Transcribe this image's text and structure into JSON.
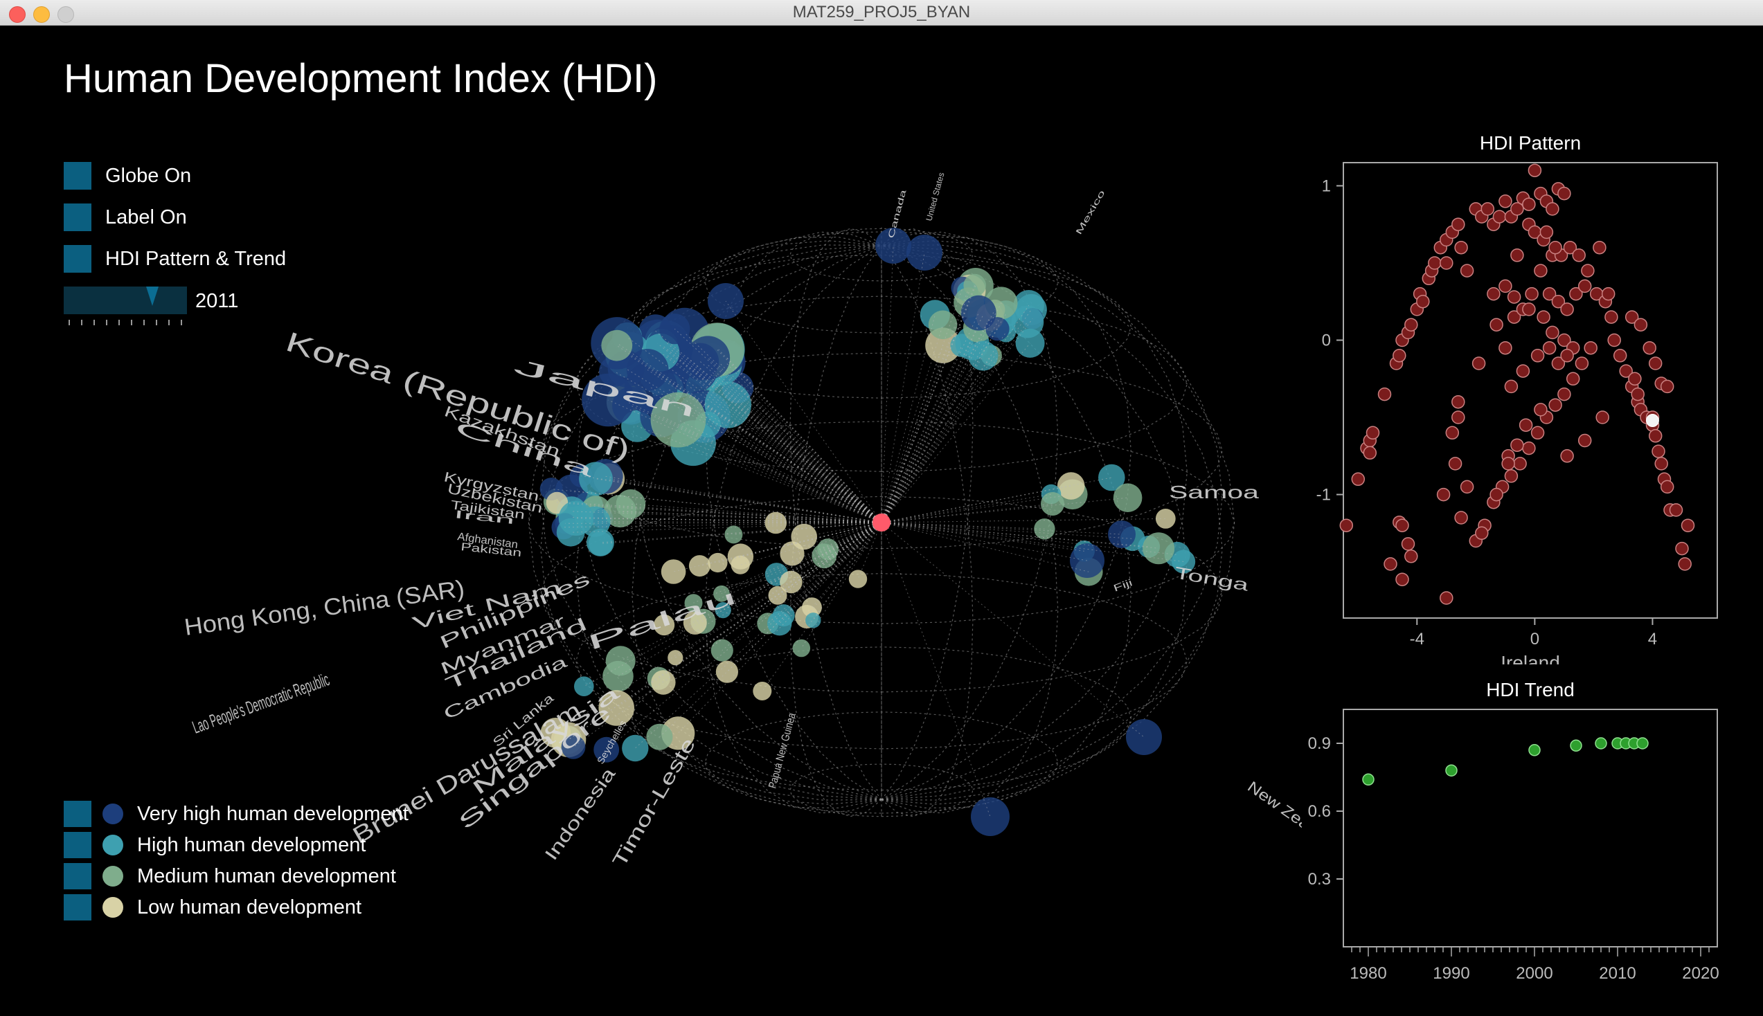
{
  "window": {
    "title": "MAT259_PROJ5_BYAN"
  },
  "page_title": "Human Development Index (HDI)",
  "controls": {
    "globe_label": "Globe On",
    "label_label": "Label On",
    "pattern_label": "HDI Pattern & Trend",
    "year": "2011",
    "year_position_fraction": 0.72
  },
  "legend": {
    "very_high": "Very high human development",
    "high": "High human development",
    "medium": "Medium human development",
    "low": "Low human development"
  },
  "colors": {
    "very_high": "#1d3e7c",
    "high": "#3ea0b0",
    "medium": "#7fad8c",
    "low": "#d8d2a6",
    "center": "#ff5a6a",
    "control_box": "#0b5f80"
  },
  "country_labels": [
    "Korea (Republic of)",
    "Japan",
    "Kazakhstan",
    "China",
    "Kyrgyzstan",
    "Uzbekistan",
    "Tajikistan",
    "Iran",
    "Afghanistan",
    "Pakistan",
    "Hong Kong, China (SAR)",
    "Viet Nam",
    "Philippines",
    "Lao People's Democratic Republic",
    "Myanmar",
    "Thailand",
    "Cambodia",
    "Palau",
    "Sri Lanka",
    "Brunei Darussalam",
    "Malaysia",
    "Singapore",
    "Indonesia",
    "Timor-Leste",
    "Seychelles",
    "Papua New Guinea",
    "Samoa",
    "Tonga",
    "Fiji",
    "New Zealand",
    "Canada",
    "United States",
    "Mexico"
  ],
  "chart_data": [
    {
      "type": "scatter",
      "title": "HDI Pattern",
      "xlabel": "Ireland",
      "ylabel": "",
      "xlim": [
        -6.5,
        6.2
      ],
      "ylim": [
        -1.8,
        1.15
      ],
      "xticks": [
        -4,
        0,
        4
      ],
      "yticks": [
        1,
        0,
        -1
      ],
      "points": [
        [
          -6.4,
          -1.2
        ],
        [
          -6.0,
          -0.9
        ],
        [
          -5.7,
          -0.7
        ],
        [
          -5.6,
          -0.65
        ],
        [
          -5.5,
          -0.6
        ],
        [
          -5.6,
          -0.73
        ],
        [
          -4.9,
          -1.45
        ],
        [
          -4.6,
          -1.18
        ],
        [
          -4.5,
          -1.55
        ],
        [
          -4.5,
          -1.2
        ],
        [
          -4.2,
          -1.4
        ],
        [
          -4.3,
          -1.32
        ],
        [
          -3.0,
          -1.67
        ],
        [
          -3.1,
          -1.0
        ],
        [
          -2.8,
          -0.6
        ],
        [
          -2.7,
          -0.8
        ],
        [
          -2.6,
          -0.5
        ],
        [
          -2.6,
          -0.4
        ],
        [
          -5.1,
          -0.35
        ],
        [
          -4.7,
          -0.15
        ],
        [
          -4.6,
          -0.1
        ],
        [
          -4.5,
          0.0
        ],
        [
          -4.3,
          0.05
        ],
        [
          -4.2,
          0.1
        ],
        [
          -4.0,
          0.2
        ],
        [
          -3.9,
          0.3
        ],
        [
          -3.8,
          0.25
        ],
        [
          -3.6,
          0.4
        ],
        [
          -3.5,
          0.45
        ],
        [
          -3.4,
          0.5
        ],
        [
          -3.2,
          0.6
        ],
        [
          -3.0,
          0.65
        ],
        [
          -2.8,
          0.7
        ],
        [
          -2.6,
          0.75
        ],
        [
          -3.0,
          0.5
        ],
        [
          -2.5,
          0.6
        ],
        [
          -2.3,
          0.45
        ],
        [
          -2.0,
          0.85
        ],
        [
          -1.8,
          0.8
        ],
        [
          -1.6,
          0.85
        ],
        [
          -1.4,
          0.75
        ],
        [
          -1.2,
          0.8
        ],
        [
          -1.0,
          0.9
        ],
        [
          -0.8,
          0.8
        ],
        [
          -0.6,
          0.85
        ],
        [
          -0.4,
          0.92
        ],
        [
          -0.2,
          0.88
        ],
        [
          0.0,
          1.1
        ],
        [
          0.2,
          0.95
        ],
        [
          0.4,
          0.9
        ],
        [
          0.6,
          0.85
        ],
        [
          0.8,
          0.98
        ],
        [
          1.0,
          0.95
        ],
        [
          -0.2,
          0.75
        ],
        [
          0.0,
          0.7
        ],
        [
          0.3,
          0.65
        ],
        [
          0.6,
          0.55
        ],
        [
          0.9,
          0.55
        ],
        [
          1.2,
          0.6
        ],
        [
          1.5,
          0.55
        ],
        [
          1.8,
          0.45
        ],
        [
          2.1,
          0.3
        ],
        [
          2.4,
          0.25
        ],
        [
          2.6,
          0.15
        ],
        [
          2.7,
          0.0
        ],
        [
          2.9,
          -0.1
        ],
        [
          3.1,
          -0.2
        ],
        [
          3.3,
          -0.3
        ],
        [
          3.5,
          -0.4
        ],
        [
          3.6,
          -0.45
        ],
        [
          3.8,
          -0.5
        ],
        [
          4.0,
          -0.55
        ],
        [
          4.1,
          -0.62
        ],
        [
          4.2,
          -0.72
        ],
        [
          4.3,
          -0.8
        ],
        [
          4.4,
          -0.9
        ],
        [
          4.5,
          -0.95
        ],
        [
          4.6,
          -1.1
        ],
        [
          4.8,
          -1.1
        ],
        [
          5.0,
          -1.35
        ],
        [
          5.2,
          -1.2
        ],
        [
          5.1,
          -1.45
        ],
        [
          3.4,
          -0.25
        ],
        [
          3.5,
          -0.35
        ],
        [
          3.3,
          0.15
        ],
        [
          3.6,
          0.1
        ],
        [
          3.9,
          -0.05
        ],
        [
          4.1,
          -0.15
        ],
        [
          4.3,
          -0.28
        ],
        [
          4.5,
          -0.3
        ],
        [
          -1.9,
          -0.15
        ],
        [
          -1.3,
          0.1
        ],
        [
          -1.0,
          -0.05
        ],
        [
          -0.7,
          0.15
        ],
        [
          -0.4,
          0.2
        ],
        [
          -0.1,
          0.3
        ],
        [
          0.2,
          0.45
        ],
        [
          0.5,
          0.3
        ],
        [
          0.8,
          0.25
        ],
        [
          1.1,
          0.2
        ],
        [
          1.4,
          0.3
        ],
        [
          1.7,
          0.35
        ],
        [
          -1.4,
          0.3
        ],
        [
          -1.0,
          0.35
        ],
        [
          -0.7,
          0.28
        ],
        [
          -0.2,
          0.2
        ],
        [
          0.3,
          0.15
        ],
        [
          0.6,
          0.05
        ],
        [
          1.0,
          0.0
        ],
        [
          1.3,
          -0.05
        ],
        [
          -0.8,
          -0.3
        ],
        [
          -0.4,
          -0.2
        ],
        [
          0.1,
          -0.1
        ],
        [
          0.5,
          -0.05
        ],
        [
          0.8,
          -0.15
        ],
        [
          1.1,
          -0.1
        ],
        [
          -2.0,
          -1.3
        ],
        [
          -1.7,
          -1.2
        ],
        [
          -1.4,
          -1.05
        ],
        [
          -1.1,
          -0.95
        ],
        [
          -0.8,
          -0.88
        ],
        [
          -0.5,
          -0.8
        ],
        [
          -0.2,
          -0.7
        ],
        [
          0.1,
          -0.6
        ],
        [
          0.4,
          -0.5
        ],
        [
          0.7,
          -0.42
        ],
        [
          1.0,
          -0.35
        ],
        [
          1.3,
          -0.25
        ],
        [
          1.6,
          -0.15
        ],
        [
          1.9,
          -0.05
        ],
        [
          -1.8,
          -1.25
        ],
        [
          -1.3,
          -1.0
        ],
        [
          -0.9,
          -0.75
        ],
        [
          -0.6,
          -0.68
        ],
        [
          -0.3,
          -0.55
        ],
        [
          0.2,
          -0.45
        ],
        [
          -2.5,
          -1.15
        ],
        [
          -2.3,
          -0.95
        ],
        [
          -0.9,
          -0.8
        ],
        [
          1.1,
          -0.75
        ],
        [
          1.7,
          -0.65
        ],
        [
          2.3,
          -0.5
        ],
        [
          4.0,
          -0.5
        ],
        [
          -0.6,
          0.55
        ],
        [
          0.4,
          0.7
        ],
        [
          0.7,
          0.6
        ],
        [
          2.2,
          0.6
        ],
        [
          2.5,
          0.3
        ]
      ],
      "highlight": [
        4.0,
        -0.52
      ]
    },
    {
      "type": "scatter",
      "title": "HDI Trend",
      "xlabel": "",
      "ylabel": "",
      "xlim": [
        1977,
        2022
      ],
      "ylim": [
        0.0,
        1.05
      ],
      "xticks": [
        1980,
        1990,
        2000,
        2010,
        2020
      ],
      "yticks": [
        0.9,
        0.6,
        0.3
      ],
      "x": [
        1980,
        1990,
        2000,
        2005,
        2008,
        2010,
        2011,
        2012,
        2013
      ],
      "y": [
        0.74,
        0.78,
        0.87,
        0.89,
        0.9,
        0.9,
        0.9,
        0.9,
        0.9
      ]
    }
  ]
}
